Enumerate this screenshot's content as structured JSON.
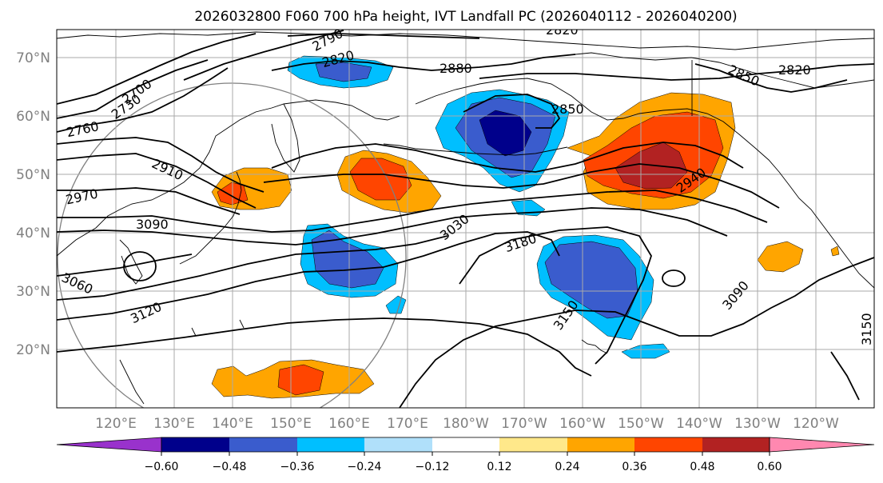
{
  "title": "2026032800 F060 700 hPa height, IVT Landfall PC (2026040112 - 2026040200)",
  "lat_labels": [
    "70°N",
    "60°N",
    "50°N",
    "40°N",
    "30°N",
    "20°N"
  ],
  "lon_labels": [
    "120°E",
    "130°E",
    "140°E",
    "150°E",
    "160°E",
    "170°E",
    "180°W",
    "170°W",
    "160°W",
    "150°W",
    "140°W",
    "130°W",
    "120°W"
  ],
  "contour_labels": [
    "2820",
    "2790",
    "2820",
    "2880",
    "2700",
    "2730",
    "2760",
    "2850",
    "2820",
    "2850",
    "2910",
    "2940",
    "2970",
    "3030",
    "3090",
    "3180",
    "3060",
    "3120",
    "3150",
    "3090",
    "3150"
  ],
  "colorbar": {
    "ticks": [
      "−0.60",
      "−0.48",
      "−0.36",
      "−0.24",
      "−0.12",
      "0.12",
      "0.24",
      "0.36",
      "0.48",
      "0.60"
    ],
    "colors": [
      "#9932cc",
      "#00008b",
      "#3a5ccd",
      "#00bfff",
      "#b0e0fa",
      "#ffffff",
      "#ffe88a",
      "#ffa500",
      "#ff4500",
      "#b22222",
      "#ff88b0"
    ]
  },
  "fill_colors": {
    "neg_strong": "#00008b",
    "neg_mid": "#3a5ccd",
    "neg_weak": "#00bfff",
    "pos_weak": "#ffa500",
    "pos_mid": "#ff4500",
    "pos_strong": "#b22222"
  }
}
